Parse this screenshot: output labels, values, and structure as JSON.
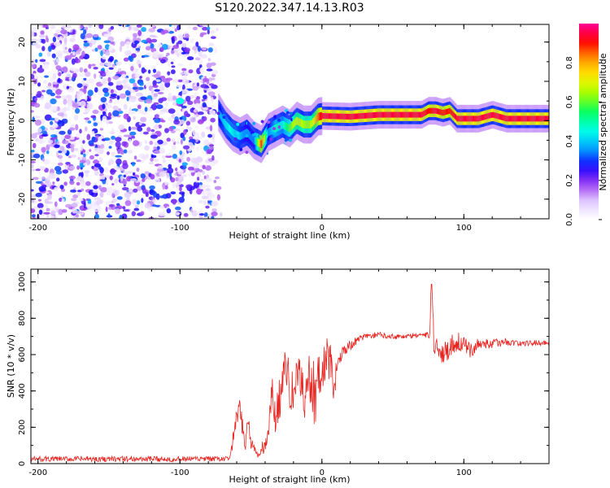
{
  "title": "S120.2022.347.14.13.R03",
  "colors": {
    "snr_line": "#e8231f",
    "colormap": [
      "#ffffff",
      "#e3d0ff",
      "#9e3cf0",
      "#1400ff",
      "#00a8ff",
      "#00ffe8",
      "#00ff66",
      "#9cff00",
      "#fff000",
      "#ff9a00",
      "#ff0000",
      "#ff0096"
    ]
  },
  "chart_data": [
    {
      "type": "heatmap",
      "xlabel": "Height of straight line (km)",
      "ylabel": "Frequency (Hz)",
      "xlim": [
        -205,
        160
      ],
      "ylim": [
        -25,
        24.5
      ],
      "xticks": [
        -200,
        -100,
        0,
        100
      ],
      "yticks": [
        -20,
        -10,
        0,
        10,
        20
      ],
      "xtick_labels": [
        "-200",
        "-100",
        "0",
        "100"
      ],
      "ytick_labels": [
        "-20",
        "-10",
        "0",
        "10",
        "20"
      ],
      "colorbar": {
        "label": "Normalized spectral amplitude",
        "range": [
          0,
          1
        ],
        "ticks": [
          0.0,
          0.2,
          0.4,
          0.6,
          0.8
        ],
        "tick_labels": [
          "0.0",
          "0.2",
          "0.4",
          "0.6",
          "0.8"
        ]
      },
      "noise_region_x": [
        -205,
        -75
      ],
      "ridge": {
        "x": [
          -73,
          -68,
          -63,
          -58,
          -53,
          -48,
          -43,
          -38,
          -33,
          -28,
          -23,
          -18,
          -13,
          -8,
          -3,
          0,
          20,
          40,
          60,
          70,
          75,
          80,
          85,
          90,
          95,
          100,
          110,
          120,
          130,
          140,
          150,
          160
        ],
        "freq": [
          2,
          -1,
          -3,
          -4,
          -3,
          -5,
          -6,
          -3,
          -2,
          -1,
          -2,
          0,
          -1,
          -1,
          1,
          1.2,
          1.0,
          1.5,
          1.5,
          1.5,
          2.5,
          2.5,
          2.0,
          2.5,
          0.5,
          0.5,
          0.5,
          1.5,
          0.5,
          0.5,
          0.5,
          0.5
        ],
        "amplitude": [
          0.35,
          0.45,
          0.45,
          0.4,
          0.35,
          0.35,
          0.9,
          0.35,
          0.5,
          0.45,
          0.6,
          0.7,
          0.65,
          0.65,
          0.85,
          0.95,
          0.95,
          0.95,
          0.95,
          0.95,
          0.9,
          0.95,
          0.9,
          0.9,
          0.95,
          0.95,
          0.95,
          0.95,
          0.95,
          0.95,
          0.95,
          0.95
        ]
      }
    },
    {
      "type": "line",
      "xlabel": "Height of straight line (km)",
      "ylabel": "SNR (10 * v/v)",
      "xlim": [
        -205,
        160
      ],
      "ylim": [
        0,
        1070
      ],
      "xticks": [
        -200,
        -100,
        0,
        100
      ],
      "yticks": [
        0,
        200,
        400,
        600,
        800,
        1000
      ],
      "xtick_labels": [
        "-200",
        "-100",
        "0",
        "100"
      ],
      "ytick_labels": [
        "0",
        "200",
        "400",
        "600",
        "800",
        "1000"
      ],
      "series": [
        {
          "x": [
            -205,
            -150,
            -100,
            -70,
            -65,
            -62,
            -60,
            -58,
            -56,
            -54,
            -52,
            -50,
            -48,
            -45,
            -42,
            -40,
            -38,
            -35,
            -33,
            -30,
            -28,
            -25,
            -22,
            -20,
            -18,
            -15,
            -12,
            -10,
            -8,
            -5,
            -3,
            0,
            3,
            6,
            8,
            10,
            12,
            15,
            20,
            25,
            30,
            40,
            50,
            60,
            70,
            76,
            77,
            78,
            79,
            80,
            82,
            85,
            90,
            95,
            100,
            105,
            110,
            120,
            130,
            140,
            150,
            160
          ],
          "y": [
            25,
            25,
            25,
            25,
            30,
            150,
            250,
            300,
            200,
            100,
            250,
            120,
            80,
            40,
            80,
            100,
            150,
            400,
            250,
            350,
            450,
            550,
            350,
            400,
            450,
            480,
            350,
            500,
            450,
            380,
            450,
            480,
            600,
            550,
            380,
            500,
            600,
            620,
            650,
            680,
            700,
            710,
            700,
            700,
            710,
            700,
            1050,
            900,
            620,
            640,
            650,
            600,
            640,
            680,
            650,
            620,
            660,
            660,
            670,
            660,
            665,
            665
          ],
          "amplitude": [
            15,
            15,
            15,
            15,
            10,
            60,
            60,
            50,
            80,
            40,
            60,
            40,
            30,
            25,
            40,
            40,
            60,
            80,
            100,
            120,
            120,
            100,
            150,
            130,
            120,
            120,
            150,
            120,
            160,
            180,
            150,
            130,
            120,
            140,
            100,
            80,
            60,
            40,
            30,
            20,
            15,
            15,
            15,
            15,
            15,
            20,
            60,
            100,
            40,
            40,
            60,
            70,
            60,
            70,
            50,
            40,
            30,
            25,
            20,
            15,
            15,
            15
          ]
        }
      ]
    }
  ]
}
